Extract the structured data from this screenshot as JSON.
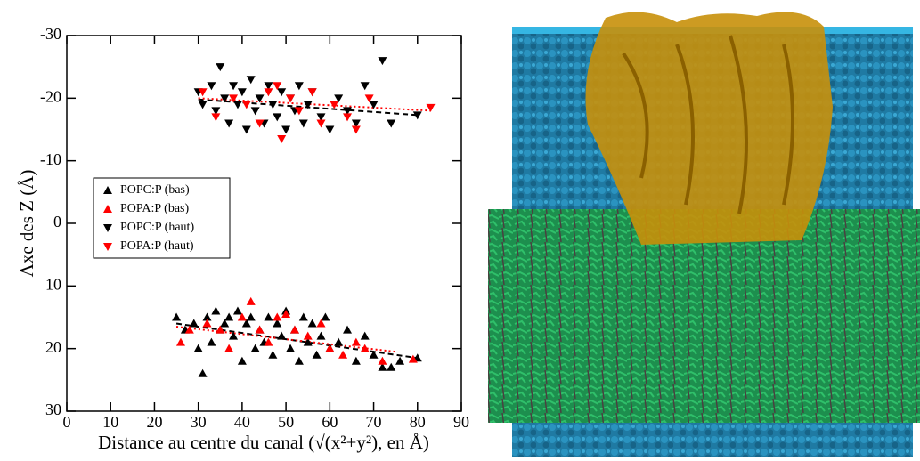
{
  "chart_data": {
    "type": "scatter",
    "xlabel": "Distance au centre du canal (√(x²+y²), en Å)",
    "ylabel": "Axe des Z (Å)",
    "xlim": [
      0,
      90
    ],
    "xticks": [
      0,
      10,
      20,
      30,
      40,
      50,
      60,
      70,
      80,
      90
    ],
    "ylim": [
      30,
      -30
    ],
    "yticks": [
      -30,
      -20,
      -10,
      0,
      10,
      20,
      30
    ],
    "legend": "center left",
    "series": [
      {
        "name": "POPC:P (bas)",
        "color": "#000000",
        "marker": "triangle-up",
        "x": [
          25,
          27,
          29,
          30,
          31,
          32,
          33,
          34,
          35,
          36,
          37,
          38,
          39,
          40,
          41,
          42,
          43,
          44,
          45,
          46,
          47,
          48,
          49,
          50,
          51,
          52,
          53,
          54,
          55,
          56,
          57,
          58,
          59,
          60,
          62,
          64,
          66,
          68,
          70,
          72,
          74,
          76,
          80
        ],
        "values": [
          15,
          17,
          16,
          20,
          24,
          15,
          19,
          14,
          17,
          16,
          15,
          18,
          14,
          22,
          16,
          15,
          20,
          17,
          19,
          15,
          21,
          16,
          18,
          14,
          20,
          17,
          22,
          15,
          19,
          16,
          21,
          18,
          15,
          20,
          19,
          17,
          22,
          18,
          21,
          23,
          23,
          22,
          21.5
        ]
      },
      {
        "name": "POPA:P (bas)",
        "color": "#ff0000",
        "marker": "triangle-up",
        "x": [
          26,
          28,
          32,
          35,
          37,
          40,
          42,
          44,
          46,
          48,
          50,
          52,
          55,
          58,
          60,
          63,
          66,
          68,
          72,
          79
        ],
        "values": [
          19,
          17,
          16,
          17,
          20,
          15,
          12.5,
          17,
          19,
          15,
          14.5,
          17,
          18,
          16,
          20,
          21,
          19,
          20,
          22,
          21.7
        ]
      },
      {
        "name": "POPC:P (haut)",
        "color": "#000000",
        "marker": "triangle-down",
        "x": [
          30,
          31,
          33,
          34,
          35,
          36,
          37,
          38,
          39,
          40,
          41,
          42,
          43,
          44,
          45,
          46,
          47,
          48,
          49,
          50,
          51,
          52,
          53,
          54,
          55,
          56,
          58,
          60,
          62,
          64,
          66,
          68,
          70,
          72,
          74,
          80
        ],
        "values": [
          -21,
          -19,
          -22,
          -18,
          -25,
          -20,
          -16,
          -22,
          -19,
          -21,
          -15,
          -23,
          -18,
          -20,
          -16,
          -22,
          -19,
          -17,
          -21,
          -15,
          -20,
          -18,
          -22,
          -16,
          -19,
          -21,
          -17,
          -15,
          -20,
          -18,
          -16,
          -22,
          -19,
          -26,
          -16,
          -17.3
        ]
      },
      {
        "name": "POPA:P (haut)",
        "color": "#ff0000",
        "marker": "triangle-down",
        "x": [
          31,
          34,
          38,
          41,
          44,
          46,
          48,
          49,
          51,
          53,
          56,
          58,
          61,
          64,
          66,
          69,
          83
        ],
        "values": [
          -21,
          -17,
          -20,
          -19,
          -16,
          -21,
          -22,
          -13.5,
          -20,
          -18,
          -21,
          -16,
          -19,
          -17,
          -15,
          -20,
          -18.5
        ]
      }
    ],
    "fit_lines": [
      {
        "color": "#000000",
        "dash": "dashed",
        "x": [
          25,
          80
        ],
        "values": [
          16,
          21.5
        ]
      },
      {
        "color": "#ff0000",
        "dash": "dotted",
        "x": [
          25,
          75
        ],
        "values": [
          16.5,
          20.5
        ]
      },
      {
        "color": "#000000",
        "dash": "dashed",
        "x": [
          30,
          80
        ],
        "values": [
          -19.8,
          -17.3
        ]
      },
      {
        "color": "#ff0000",
        "dash": "dotted",
        "x": [
          30,
          83
        ],
        "values": [
          -20,
          -18
        ]
      }
    ]
  }
}
